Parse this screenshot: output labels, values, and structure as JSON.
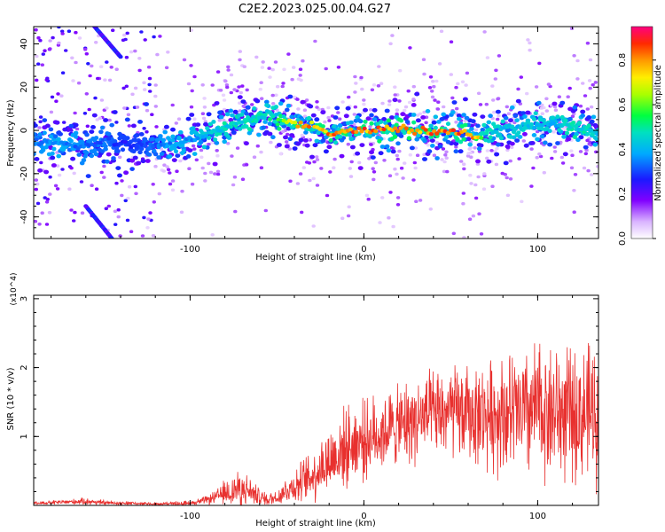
{
  "title": "C2E2.2023.025.00.04.G27",
  "chart_data": [
    {
      "type": "heatmap",
      "title": "C2E2.2023.025.00.04.G27",
      "xlabel": "Height of straight line (km)",
      "ylabel": "Frequency (Hz)",
      "xlim": [
        -190,
        135
      ],
      "ylim": [
        -50,
        48
      ],
      "x_ticks": [
        "-100",
        "0",
        "100"
      ],
      "x_tick_values": [
        -100,
        0,
        100
      ],
      "y_ticks": [
        "40",
        "20",
        "0",
        "-20",
        "-40"
      ],
      "y_tick_values": [
        40,
        20,
        0,
        -20,
        -40
      ],
      "colorbar": {
        "label": "Normalized spectral amplitude",
        "range": [
          0.0,
          0.95
        ],
        "ticks": [
          "0.0",
          "0.2",
          "0.4",
          "0.6",
          "0.8"
        ],
        "tick_values": [
          0.0,
          0.2,
          0.4,
          0.6,
          0.8
        ]
      },
      "ridge": {
        "description_values": "peak-frequency track (Hz) vs height (km)",
        "x": [
          -190,
          -175,
          -160,
          -150,
          -140,
          -130,
          -120,
          -110,
          -100,
          -90,
          -80,
          -70,
          -60,
          -55,
          -50,
          -45,
          -40,
          -35,
          -30,
          -25,
          -20,
          -10,
          0,
          10,
          20,
          30,
          40,
          50,
          60,
          65,
          70,
          80,
          90,
          100,
          110,
          120,
          130,
          135
        ],
        "y": [
          -5,
          -6,
          -7,
          -5,
          -6,
          -7,
          -7,
          -6,
          -4,
          -2,
          1,
          4,
          6,
          8,
          5,
          4,
          3,
          3,
          2,
          1,
          -1,
          0,
          0,
          0,
          1,
          0,
          -1,
          0,
          -1,
          -3,
          -1,
          1,
          2,
          2,
          3,
          2,
          0,
          -2
        ],
        "amplitude": [
          0.35,
          0.4,
          0.35,
          0.35,
          0.3,
          0.3,
          0.35,
          0.4,
          0.4,
          0.45,
          0.5,
          0.5,
          0.5,
          0.5,
          0.6,
          0.7,
          0.8,
          0.85,
          0.85,
          0.8,
          0.9,
          0.9,
          0.9,
          0.9,
          0.9,
          0.85,
          0.9,
          0.9,
          0.9,
          0.85,
          0.5,
          0.45,
          0.45,
          0.45,
          0.45,
          0.5,
          0.5,
          0.4
        ]
      },
      "slanted_streaks": [
        {
          "x": [
            -155,
            -140
          ],
          "y": [
            48,
            34
          ]
        },
        {
          "x": [
            -160,
            -145
          ],
          "y": [
            -35,
            -50
          ]
        }
      ],
      "grid": false
    },
    {
      "type": "line",
      "xlabel": "Height of straight line (km)",
      "ylabel": "SNR (10 * v/v)",
      "y_multiplier": "(x10^4)",
      "xlim": [
        -190,
        135
      ],
      "ylim": [
        0,
        3.05
      ],
      "x_ticks": [
        "-100",
        "0",
        "100"
      ],
      "x_tick_values": [
        -100,
        0,
        100
      ],
      "y_ticks": [
        "1",
        "2",
        "3"
      ],
      "y_tick_values": [
        1,
        2,
        3
      ],
      "series": [
        {
          "color": "#e8302e",
          "x": [
            -190,
            -170,
            -160,
            -150,
            -120,
            -100,
            -90,
            -85,
            -80,
            -75,
            -70,
            -65,
            -60,
            -55,
            -50,
            -45,
            -40,
            -35,
            -30,
            -25,
            -20,
            -15,
            -10,
            -5,
            0,
            5,
            10,
            15,
            20,
            25,
            30,
            40,
            50,
            60,
            70,
            80,
            90,
            100,
            110,
            120,
            130,
            135
          ],
          "y": [
            0.03,
            0.05,
            0.06,
            0.04,
            0.02,
            0.03,
            0.08,
            0.12,
            0.18,
            0.22,
            0.25,
            0.2,
            0.12,
            0.08,
            0.12,
            0.22,
            0.28,
            0.35,
            0.42,
            0.55,
            0.65,
            0.75,
            0.85,
            0.92,
            0.95,
            1.0,
            1.05,
            1.12,
            1.15,
            1.2,
            1.25,
            1.3,
            1.35,
            1.32,
            1.3,
            1.35,
            1.3,
            1.4,
            1.35,
            1.3,
            1.35,
            1.3
          ],
          "spread": [
            0.02,
            0.03,
            0.04,
            0.03,
            0.02,
            0.03,
            0.05,
            0.08,
            0.15,
            0.2,
            0.2,
            0.15,
            0.1,
            0.08,
            0.1,
            0.15,
            0.2,
            0.25,
            0.3,
            0.35,
            0.4,
            0.45,
            0.45,
            0.45,
            0.45,
            0.45,
            0.45,
            0.45,
            0.45,
            0.5,
            0.5,
            0.5,
            0.55,
            0.55,
            0.6,
            0.7,
            0.75,
            0.8,
            0.8,
            0.75,
            0.8,
            0.8
          ]
        }
      ],
      "grid": false
    }
  ]
}
